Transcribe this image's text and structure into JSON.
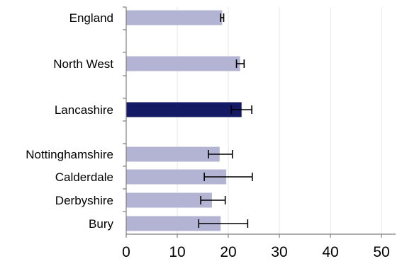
{
  "chart_data": {
    "type": "bar",
    "orientation": "horizontal",
    "categories": [
      "England",
      "North West",
      "Lancashire",
      "Nottinghamshire",
      "Calderdale",
      "Derbyshire",
      "Bury"
    ],
    "values": [
      18.8,
      22.3,
      22.6,
      18.3,
      19.6,
      16.8,
      18.5
    ],
    "error_low": [
      18.5,
      21.6,
      20.6,
      16.1,
      15.3,
      14.6,
      14.2
    ],
    "error_high": [
      19.1,
      23.1,
      24.6,
      20.8,
      24.7,
      19.4,
      23.8
    ],
    "highlight": "Lancashire",
    "xlim": [
      0,
      50
    ],
    "xticks": [
      "0",
      "10",
      "20",
      "30",
      "40",
      "50"
    ],
    "grid": "vertical",
    "colors": {
      "bar": "#b3b3d4",
      "highlight": "#141a63",
      "error_bar": "#000000",
      "axis": "#7f7f7f",
      "grid": "#e6e6e6"
    }
  }
}
